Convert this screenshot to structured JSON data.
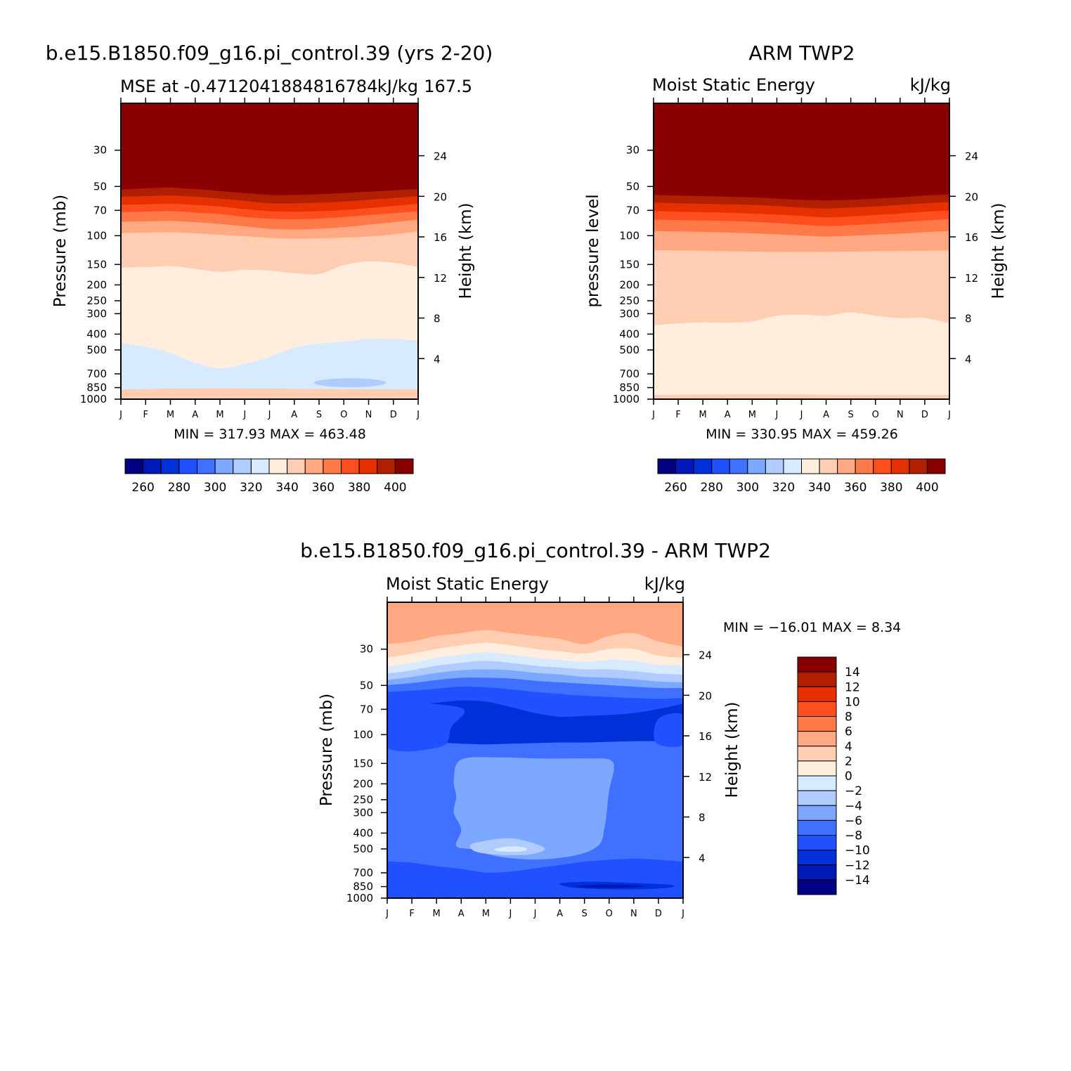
{
  "chart_data": [
    {
      "type": "contour",
      "title": "b.e15.B1850.f09_g16.pi_control.39 (yrs 2-20)",
      "left_string": "MSE at -0.4712041884816784",
      "right_string": "kJ/kg",
      "center_overlap_string": "167.5",
      "xlabel": "",
      "ylabel": "Pressure (mb)",
      "ylabel_right": "Height (km)",
      "x_ticks": [
        "J",
        "F",
        "M",
        "A",
        "M",
        "J",
        "J",
        "A",
        "S",
        "O",
        "N",
        "D",
        "J"
      ],
      "y_ticks": [
        "30",
        "50",
        "70",
        "100",
        "150",
        "200",
        "250",
        "300",
        "400",
        "500",
        "700",
        "850",
        "1000"
      ],
      "y_ticks_right": [
        "24",
        "20",
        "16",
        "12",
        "8",
        "4"
      ],
      "minmax_text": "MIN = 317.93 MAX = 463.48",
      "min": 317.93,
      "max": 463.48,
      "levels": [
        250,
        260,
        270,
        280,
        290,
        300,
        310,
        320,
        330,
        340,
        350,
        360,
        370,
        380,
        390,
        400
      ],
      "colorbar_labels": [
        "260",
        "280",
        "300",
        "320",
        "340",
        "360",
        "380",
        "400"
      ],
      "boundaries_mb": [
        [
          15.5,
          15.5,
          15.5,
          15.5,
          15.5,
          15.5,
          15.5,
          15.5,
          15.5,
          15.5,
          15.5,
          15.5,
          15.5
        ],
        [
          52.5,
          51.5,
          51.0,
          52.0,
          53.5,
          55.0,
          56.5,
          56.5,
          56.0,
          55.0,
          54.0,
          53.0,
          52.0
        ],
        [
          58.0,
          57.5,
          57.0,
          58.0,
          59.5,
          61.5,
          63.5,
          63.5,
          63.0,
          62.0,
          60.5,
          59.0,
          57.5
        ],
        [
          65.0,
          64.5,
          64.0,
          65.0,
          66.5,
          69.0,
          71.0,
          71.5,
          71.0,
          70.0,
          68.0,
          66.0,
          64.0
        ],
        [
          72.0,
          71.5,
          71.0,
          72.5,
          74.0,
          77.0,
          79.0,
          79.5,
          79.0,
          77.0,
          75.0,
          73.0,
          71.0
        ],
        [
          82.5,
          82.0,
          81.5,
          83.0,
          85.0,
          88.0,
          91.0,
          92.0,
          91.0,
          89.0,
          86.0,
          83.0,
          80.0
        ],
        [
          96.5,
          96.0,
          95.5,
          97.0,
          99.0,
          101.0,
          103.5,
          104.5,
          104.0,
          103.0,
          101.5,
          98.5,
          94.5
        ],
        [
          157.0,
          156.0,
          154.0,
          160.0,
          167.0,
          162.0,
          164.0,
          170.0,
          172.0,
          152.0,
          144.0,
          147.0,
          156.0
        ],
        [
          455.0,
          480.0,
          525.0,
          600.0,
          650.0,
          610.0,
          555.0,
          485.0,
          460.0,
          445.0,
          430.0,
          430.0,
          440.0
        ],
        [
          875.0,
          870.0,
          865.0,
          862.0,
          860.0,
          862.0,
          864.0,
          867.0,
          870.0,
          872.0,
          874.0,
          873.0,
          872.0
        ],
        [
          1000.0,
          988.0,
          985.0,
          984.0,
          983.0,
          984.0,
          985.0,
          987.0,
          989.0,
          991.0,
          992.0,
          990.0,
          988.0
        ]
      ],
      "band_levels": [
        400,
        390,
        380,
        370,
        360,
        350,
        340,
        330,
        320,
        340
      ],
      "blob": {
        "level": 310,
        "x_month": [
          7.8,
          10.7
        ],
        "p_mb": [
          745,
          845
        ]
      }
    },
    {
      "type": "contour",
      "title": "ARM TWP2",
      "left_string": "Moist Static Energy",
      "right_string": "kJ/kg",
      "xlabel": "",
      "ylabel": "pressure level",
      "ylabel_right": "Height (km)",
      "x_ticks": [
        "J",
        "F",
        "M",
        "A",
        "M",
        "J",
        "J",
        "A",
        "S",
        "O",
        "N",
        "D",
        "J"
      ],
      "y_ticks": [
        "30",
        "50",
        "70",
        "100",
        "150",
        "200",
        "250",
        "300",
        "400",
        "500",
        "700",
        "850",
        "1000"
      ],
      "y_ticks_right": [
        "24",
        "20",
        "16",
        "12",
        "8",
        "4"
      ],
      "minmax_text": "MIN = 330.95 MAX = 459.26",
      "min": 330.95,
      "max": 459.26,
      "levels": [
        250,
        260,
        270,
        280,
        290,
        300,
        310,
        320,
        330,
        340,
        350,
        360,
        370,
        380,
        390,
        400
      ],
      "colorbar_labels": [
        "260",
        "280",
        "300",
        "320",
        "340",
        "360",
        "380",
        "400"
      ],
      "boundaries_mb": [
        [
          15.5,
          15.5,
          15.5,
          15.5,
          15.5,
          15.5,
          15.5,
          15.5,
          15.5,
          15.5,
          15.5,
          15.5,
          15.5
        ],
        [
          56.5,
          57.0,
          57.5,
          58.0,
          58.5,
          59.5,
          60.5,
          61.0,
          60.5,
          59.5,
          58.5,
          57.0,
          56.0
        ],
        [
          63.0,
          63.5,
          64.0,
          64.5,
          65.0,
          66.0,
          67.5,
          68.5,
          67.5,
          66.5,
          65.0,
          63.5,
          62.5
        ],
        [
          71.0,
          71.5,
          72.0,
          72.5,
          73.5,
          74.5,
          76.0,
          77.5,
          76.5,
          75.0,
          73.5,
          71.5,
          70.5
        ],
        [
          80.0,
          80.5,
          81.0,
          81.5,
          82.5,
          84.0,
          86.0,
          87.5,
          86.5,
          85.0,
          83.0,
          81.0,
          79.5
        ],
        [
          94.0,
          94.5,
          95.0,
          96.0,
          97.0,
          98.5,
          100.0,
          101.5,
          100.5,
          99.0,
          97.5,
          95.5,
          94.0
        ],
        [
          123.0,
          123.5,
          124.0,
          125.0,
          125.5,
          126.0,
          126.0,
          126.0,
          125.5,
          125.0,
          124.5,
          124.0,
          123.5
        ],
        [
          355.0,
          345.0,
          340.0,
          342.0,
          335.0,
          310.0,
          305.0,
          310.0,
          295.0,
          310.0,
          320.0,
          320.0,
          345.0
        ],
        [
          945.0,
          942.0,
          940.0,
          938.0,
          936.0,
          938.0,
          940.0,
          942.0,
          944.0,
          945.0,
          946.0,
          945.0,
          944.0
        ],
        [
          1000.0,
          1000.0,
          1000.0,
          1000.0,
          1000.0,
          1000.0,
          1000.0,
          1000.0,
          1000.0,
          1000.0,
          1000.0,
          1000.0,
          1000.0
        ]
      ],
      "band_levels": [
        400,
        390,
        380,
        370,
        360,
        350,
        340,
        330,
        340
      ]
    },
    {
      "type": "contour",
      "title": "b.e15.B1850.f09_g16.pi_control.39 - ARM TWP2",
      "left_string": "Moist Static Energy",
      "right_string": "kJ/kg",
      "xlabel": "",
      "ylabel": "Pressure (mb)",
      "ylabel_right": "Height (km)",
      "x_ticks": [
        "J",
        "F",
        "M",
        "A",
        "M",
        "J",
        "J",
        "A",
        "S",
        "O",
        "N",
        "D",
        "J"
      ],
      "y_ticks": [
        "30",
        "50",
        "70",
        "100",
        "150",
        "200",
        "250",
        "300",
        "400",
        "500",
        "700",
        "850",
        "1000"
      ],
      "y_ticks_right": [
        "24",
        "20",
        "16",
        "12",
        "8",
        "4"
      ],
      "minmax_text": "MIN = −16.01 MAX =    8.34",
      "min": -16.01,
      "max": 8.34,
      "levels": [
        -14,
        -12,
        -10,
        -8,
        -6,
        -4,
        -2,
        0,
        2,
        4,
        6,
        8,
        10,
        12,
        14
      ],
      "colorbar_labels": [
        "14",
        "12",
        "10",
        "8",
        "6",
        "4",
        "2",
        "0",
        "−2",
        "−4",
        "−6",
        "−8",
        "−10",
        "−12",
        "−14"
      ],
      "boundaries_mb": [
        [
          15.5,
          15.5,
          15.5,
          15.5,
          15.5,
          15.5,
          15.5,
          15.5,
          15.5,
          15.5,
          15.5,
          15.5,
          15.5
        ],
        [
          28.0,
          27.0,
          25.0,
          24.0,
          23.0,
          24.0,
          25.0,
          26.0,
          28.0,
          25.0,
          24.0,
          27.0,
          29.0
        ],
        [
          34.0,
          32.0,
          30.0,
          28.5,
          27.5,
          28.5,
          30.0,
          31.0,
          32.0,
          30.0,
          30.0,
          33.0,
          34.0
        ],
        [
          38.5,
          36.5,
          34.0,
          32.5,
          31.5,
          32.5,
          34.0,
          35.0,
          36.0,
          35.0,
          35.5,
          37.5,
          38.0
        ],
        [
          42.5,
          40.5,
          38.0,
          36.5,
          35.5,
          36.5,
          38.0,
          39.0,
          40.0,
          40.0,
          41.0,
          42.5,
          43.0
        ],
        [
          46.5,
          44.5,
          42.0,
          40.5,
          40.0,
          40.5,
          42.0,
          43.0,
          44.5,
          45.0,
          46.0,
          47.5,
          48.0
        ],
        [
          50.0,
          48.5,
          46.5,
          45.0,
          45.0,
          45.5,
          47.0,
          48.0,
          49.0,
          50.0,
          51.0,
          52.0,
          52.0
        ],
        [
          55.0,
          54.0,
          52.5,
          51.0,
          51.5,
          53.0,
          55.0,
          56.5,
          58.0,
          59.0,
          60.0,
          60.5,
          60.0
        ],
        [
          67.0,
          66.0,
          64.0,
          62.0,
          63.0,
          68.0,
          74.0,
          78.0,
          77.0,
          76.0,
          74.0,
          70.0,
          65.0
        ],
        [
          113.0,
          112.0,
          112.0,
          114.0,
          115.0,
          114.0,
          113.0,
          112.0,
          112.0,
          111.0,
          110.0,
          110.0,
          110.0
        ],
        [
          598.0,
          610.0,
          640.0,
          665.0,
          700.0,
          690.0,
          660.0,
          630.0,
          600.0,
          585.0,
          575.0,
          585.0,
          600.0
        ],
        [
          960.0,
          957.0,
          955.0,
          952.0,
          950.0,
          952.0,
          955.0,
          957.0,
          959.0,
          960.0,
          960.0,
          959.0,
          958.0
        ]
      ],
      "band_levels": [
        4,
        2,
        0,
        -2,
        -4,
        -6,
        -8,
        -10,
        -12,
        -8,
        -10
      ],
      "blobs": [
        {
          "level": -6,
          "points": [
            [
              3.0,
              142
            ],
            [
              4.6,
              138
            ],
            [
              6.2,
              140
            ],
            [
              8.2,
              140
            ],
            [
              9.0,
              142
            ],
            [
              9.2,
              160
            ],
            [
              9.0,
              220
            ],
            [
              8.9,
              300
            ],
            [
              8.8,
              380
            ],
            [
              8.6,
              470
            ],
            [
              7.8,
              540
            ],
            [
              6.2,
              580
            ],
            [
              4.6,
              560
            ],
            [
              3.5,
              505
            ],
            [
              2.8,
              480
            ],
            [
              3.0,
              380
            ],
            [
              2.7,
              300
            ],
            [
              2.8,
              240
            ],
            [
              2.7,
              190
            ]
          ]
        },
        {
          "level": -4,
          "points": [
            [
              3.4,
              470
            ],
            [
              4.2,
              440
            ],
            [
              5.0,
              430
            ],
            [
              5.8,
              455
            ],
            [
              6.4,
              500
            ],
            [
              5.8,
              540
            ],
            [
              4.6,
              545
            ],
            [
              3.6,
              520
            ]
          ]
        },
        {
          "level": -2,
          "points": [
            [
              4.4,
              498
            ],
            [
              5.0,
              482
            ],
            [
              5.6,
              492
            ],
            [
              5.6,
              512
            ],
            [
              5.0,
              522
            ],
            [
              4.4,
              512
            ]
          ]
        },
        {
          "level": -12,
          "points": [
            [
              7.0,
              815
            ],
            [
              8.0,
              795
            ],
            [
              9.2,
              800
            ],
            [
              11.5,
              830
            ],
            [
              11.2,
              870
            ],
            [
              9.4,
              885
            ],
            [
              7.6,
              865
            ]
          ]
        },
        {
          "level": -14,
          "points": [
            [
              7.8,
              840
            ],
            [
              8.6,
              828
            ],
            [
              9.8,
              830
            ],
            [
              10.4,
              845
            ],
            [
              10.0,
              860
            ],
            [
              8.8,
              866
            ],
            [
              7.8,
              858
            ]
          ]
        },
        {
          "level": -10,
          "points": [
            [
              0.0,
              63
            ],
            [
              1.4,
              64
            ],
            [
              3.1,
              70
            ],
            [
              2.6,
              90
            ],
            [
              2.2,
              118
            ],
            [
              0.0,
              120
            ]
          ]
        },
        {
          "level": -10,
          "points": [
            [
              11.0,
              80
            ],
            [
              12.0,
              76
            ],
            [
              12.0,
              115
            ],
            [
              10.9,
              112
            ]
          ]
        }
      ]
    }
  ],
  "colors": {
    "seq": [
      "#000080",
      "#0018b8",
      "#0030d8",
      "#2050ff",
      "#4070ff",
      "#7ca8ff",
      "#b0ccff",
      "#d8eaff",
      "#ffeede",
      "#ffcdb2",
      "#ffa882",
      "#ff7a48",
      "#ff4e1e",
      "#e63000",
      "#b02000",
      "#8a0000"
    ],
    "diff": [
      "#000080",
      "#0018b8",
      "#0030d8",
      "#2050ff",
      "#4070ff",
      "#7ca8ff",
      "#b0ccff",
      "#d8eaff",
      "#ffeede",
      "#ffcdb2",
      "#ffa882",
      "#ff7a48",
      "#ff4e1e",
      "#e63000",
      "#b02000",
      "#8a0000"
    ]
  }
}
